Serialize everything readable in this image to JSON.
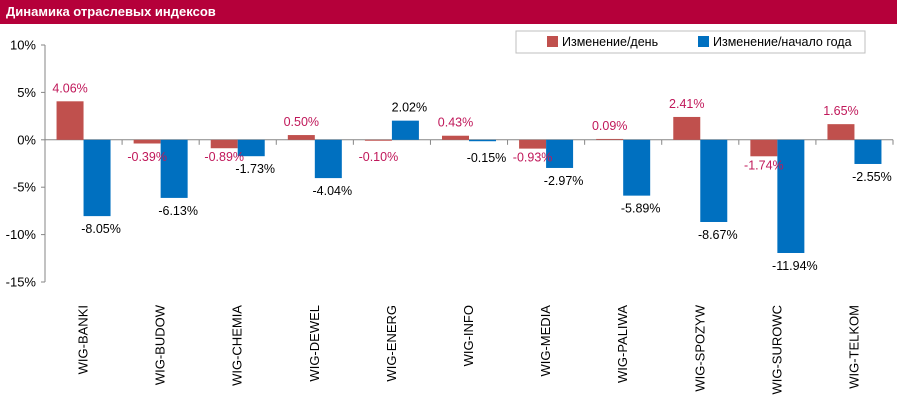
{
  "header": {
    "title": "Динамика отраслевых индексов"
  },
  "colors": {
    "title_bar": "#b5003a",
    "series_day": "#c0504d",
    "series_ytd": "#0070c0",
    "day_label": "#c0185a"
  },
  "chart_data": {
    "type": "bar",
    "title": "Динамика отраслевых индексов",
    "categories": [
      "WIG-BANKI",
      "WIG-BUDOW",
      "WIG-CHEMIA",
      "WIG-DEWEL",
      "WIG-ENERG",
      "WIG-INFO",
      "WIG-MEDIA",
      "WIG-PALIWA",
      "WIG-SPOZYW",
      "WIG-SUROWC",
      "WIG-TELKOM"
    ],
    "series": [
      {
        "name": "Изменение/день",
        "color": "#c0504d",
        "values": [
          4.06,
          -0.39,
          -0.89,
          0.5,
          -0.1,
          0.43,
          -0.93,
          0.09,
          2.41,
          -1.74,
          1.65
        ],
        "labels": [
          "4.06%",
          "-0.39%",
          "-0.89%",
          "0.50%",
          "-0.10%",
          "0.43%",
          "-0.93%",
          "0.09%",
          "2.41%",
          "-1.74%",
          "1.65%"
        ]
      },
      {
        "name": "Изменение/начало года",
        "color": "#0070c0",
        "values": [
          -8.05,
          -6.13,
          -1.73,
          -4.04,
          2.02,
          -0.15,
          -2.97,
          -5.89,
          -8.67,
          -11.94,
          -2.55
        ],
        "labels": [
          "-8.05%",
          "-6.13%",
          "-1.73%",
          "-4.04%",
          "2.02%",
          "-0.15%",
          "-2.97%",
          "-5.89%",
          "-8.67%",
          "-11.94%",
          "-2.55%"
        ]
      }
    ],
    "ylim": [
      -15,
      10
    ],
    "yticks": [
      10,
      5,
      0,
      -5,
      -10,
      -15
    ],
    "ytick_labels": [
      "10%",
      "5%",
      "0%",
      "-5%",
      "-10%",
      "-15%"
    ],
    "xlabel": "",
    "ylabel": "",
    "legend_position": "top-right",
    "grid": false
  }
}
